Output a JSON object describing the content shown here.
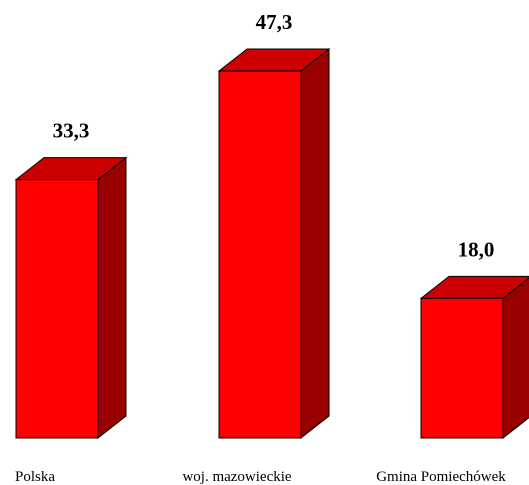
{
  "chart_data": {
    "type": "bar",
    "categories": [
      "Polska",
      "woj. mazowieckie",
      "Gmina Pomiechówek"
    ],
    "values": [
      33.3,
      47.3,
      18.0
    ],
    "value_labels": [
      "33,3",
      "47,3",
      "18,0"
    ],
    "title": "",
    "xlabel": "",
    "ylabel": "",
    "ylim": [
      0,
      47.3
    ],
    "grid": false,
    "legend": "none",
    "style": "3d-bars",
    "colors": {
      "front": "#ff0000",
      "top": "#cc0000",
      "side": "#990000",
      "outline": "#000000"
    }
  }
}
